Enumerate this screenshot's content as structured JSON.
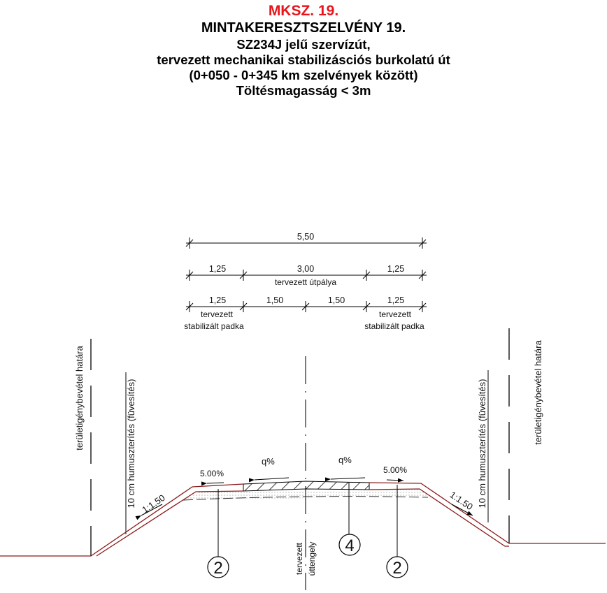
{
  "title": {
    "code": "MKSZ. 19.",
    "main": "MINTAKERESZTSZELVÉNY 19.",
    "lines": [
      "SZ234J jelű szervízút,",
      "tervezett  mechanikai stabilizásciós burkolatú út",
      "(0+050 - 0+345 km szelvények között)",
      "Töltésmagasság < 3m"
    ]
  },
  "colors": {
    "title_code": "#e8141b",
    "ground_line": "#8b1a1a"
  },
  "dimensions": {
    "total": "5,50",
    "row2": [
      "1,25",
      "3,00",
      "1,25"
    ],
    "row2_label": "tervezett útpálya",
    "row3": [
      "1,25",
      "1,50",
      "1,50",
      "1,25"
    ],
    "shoulder_label_1": "tervezett",
    "shoulder_label_2": "stabilizált padka"
  },
  "annotations": {
    "boundary": "területigénybevétel határa",
    "humus": "10 cm humuszterítés (füvesítés)",
    "slope": "1:1.50",
    "shoulder_slope": "5.00%",
    "cross_slope": "q%",
    "axis_1": "tervezett",
    "axis_2": "úttengely"
  },
  "markers": [
    "2",
    "4",
    "2"
  ]
}
